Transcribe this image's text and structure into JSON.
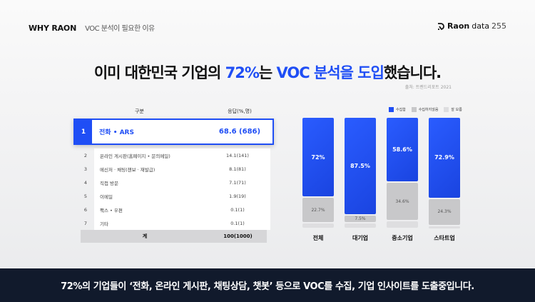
{
  "header": {
    "brand": "WHY RAON",
    "subtitle": "VOC 분석이 필요한 이유",
    "logo_bold": "Raon",
    "logo_mid": "data",
    "logo_num": "255"
  },
  "title": {
    "p1": "이미 대한민국 기업의 ",
    "p2": "72%",
    "p3": "는 ",
    "p4": "VOC 분석을 도입",
    "p5": "했습니다."
  },
  "source": "출처: 트렌드리포트 2021",
  "table": {
    "headers": [
      "구분",
      "응답(%,명)"
    ],
    "highlight": {
      "num": "1",
      "label": "전화 • ARS",
      "value": "68.6 (686)"
    },
    "rows": [
      {
        "num": "2",
        "label": "온라인 게시판(홈페이지 • 문의메일)",
        "value": "14.1(141)"
      },
      {
        "num": "3",
        "label": "메신저 · 채팅(챈보 · 재발급)",
        "value": "8.1(81)"
      },
      {
        "num": "4",
        "label": "직접 방문",
        "value": "7.1(71)"
      },
      {
        "num": "5",
        "label": "이메일",
        "value": "1.9(19)"
      },
      {
        "num": "6",
        "label": "팩스 • 우편",
        "value": "0.1(1)"
      },
      {
        "num": "7",
        "label": "기타",
        "value": "0.1(1)"
      }
    ],
    "total": {
      "label": "계",
      "value": "100(1000)"
    }
  },
  "chart_data": {
    "type": "bar",
    "stacked": true,
    "categories": [
      "전체",
      "대기업",
      "중소기업",
      "스타트업"
    ],
    "series": [
      {
        "name": "수집함",
        "values": [
          72,
          87.5,
          58.6,
          72.9
        ],
        "labels": [
          "72%",
          "87.5%",
          "58.6%",
          "72.9%"
        ],
        "color": "#1f4ef5"
      },
      {
        "name": "수집하지않음",
        "values": [
          22.7,
          7.5,
          34.6,
          24.3
        ],
        "labels": [
          "22.7%",
          "7.5%",
          "34.6%",
          "24.3%"
        ],
        "color": "#c8c8ca"
      },
      {
        "name": "잘 모름",
        "values": [
          5.3,
          5.0,
          6.8,
          2.8
        ],
        "color": "#dedee0"
      }
    ],
    "ylim": [
      0,
      100
    ],
    "legend": "top-right"
  },
  "banner": "72%의 기업들이 ‘전화, 온라인 게시판, 채팅상담, 챗봇’ 등으로 VOC를 수집, 기업 인사이트를 도출중입니다."
}
